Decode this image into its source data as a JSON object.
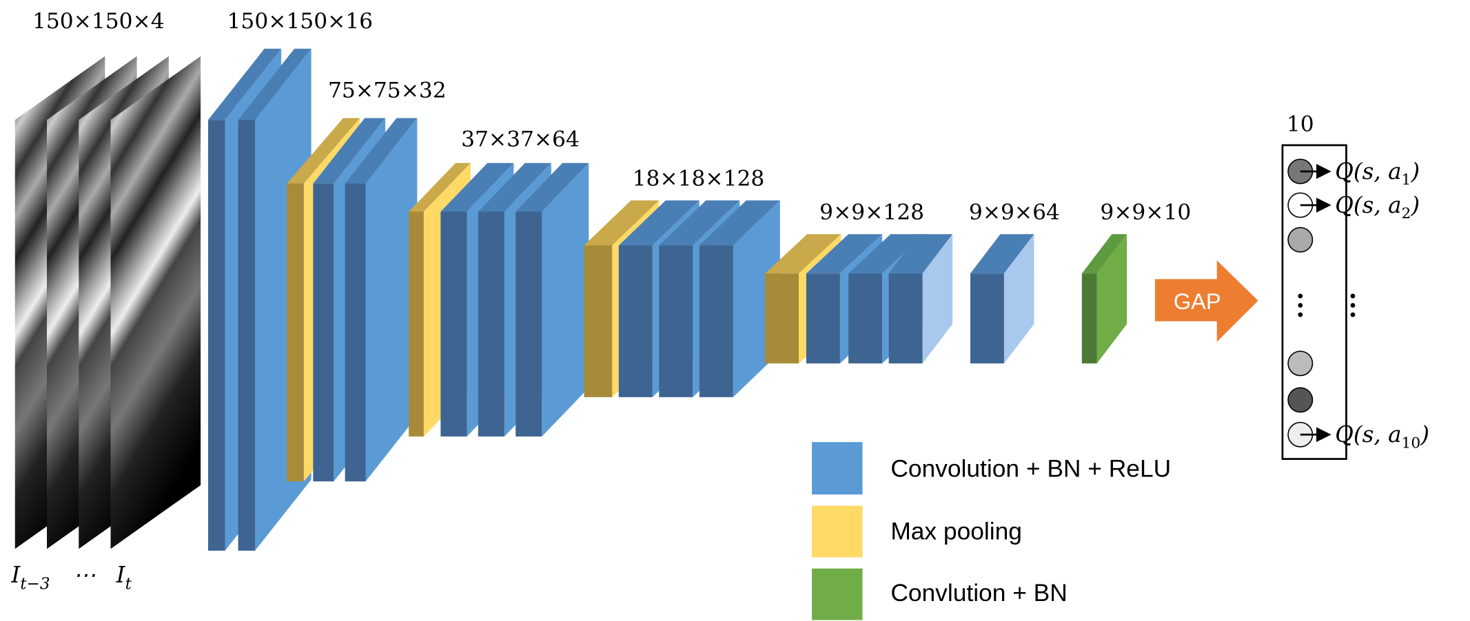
{
  "input": {
    "size": "150×150×4",
    "labels": [
      {
        "main": "I",
        "sub": "t−3"
      },
      {
        "main": "⋯"
      },
      {
        "main": "I",
        "sub": "t"
      }
    ]
  },
  "layers": [
    {
      "size": "150×150×16"
    },
    {
      "size": "75×75×32"
    },
    {
      "size": "37×37×64"
    },
    {
      "size": "18×18×128"
    },
    {
      "size": "9×9×128"
    },
    {
      "size": "9×9×64"
    },
    {
      "size": "9×9×10"
    }
  ],
  "gap": "GAP",
  "output": {
    "size": "10",
    "labels": [
      {
        "text": "Q(s, a",
        "sub": "1",
        "close": ")"
      },
      {
        "text": "Q(s, a",
        "sub": "2",
        "close": ")"
      },
      {
        "text": "Q(s, a",
        "sub": "10",
        "close": ")"
      }
    ]
  },
  "legend": [
    "Convolution + BN + ReLU",
    "Max pooling",
    "Convlution + BN"
  ]
}
